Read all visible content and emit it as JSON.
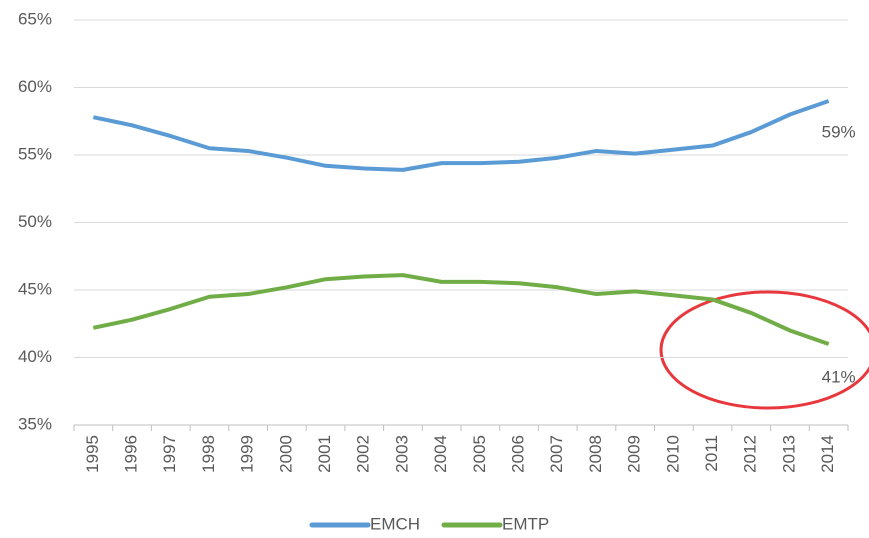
{
  "chart_data": {
    "type": "line",
    "categories": [
      "1995",
      "1996",
      "1997",
      "1998",
      "1999",
      "2000",
      "2001",
      "2002",
      "2003",
      "2004",
      "2005",
      "2006",
      "2007",
      "2008",
      "2009",
      "2010",
      "2011",
      "2012",
      "2013",
      "2014"
    ],
    "series": [
      {
        "name": "EMCH",
        "color": "#5b9bd5",
        "values": [
          57.8,
          57.2,
          56.4,
          55.5,
          55.3,
          54.8,
          54.2,
          54.0,
          53.9,
          54.4,
          54.4,
          54.5,
          54.8,
          55.3,
          55.1,
          55.4,
          55.7,
          56.7,
          58.0,
          59.0
        ],
        "value_labels": [
          null,
          null,
          null,
          null,
          null,
          null,
          null,
          null,
          null,
          null,
          null,
          null,
          null,
          null,
          null,
          null,
          null,
          null,
          null,
          "59%"
        ]
      },
      {
        "name": "EMTP",
        "color": "#70ad47",
        "values": [
          42.2,
          42.8,
          43.6,
          44.5,
          44.7,
          45.2,
          45.8,
          46.0,
          46.1,
          45.6,
          45.6,
          45.5,
          45.2,
          44.7,
          44.9,
          44.6,
          44.3,
          43.3,
          42.0,
          41.0
        ],
        "value_labels": [
          null,
          null,
          null,
          null,
          null,
          null,
          null,
          null,
          null,
          null,
          null,
          null,
          null,
          null,
          null,
          null,
          null,
          null,
          null,
          "41%"
        ]
      }
    ],
    "ylim": [
      35,
      65
    ],
    "yticks": [
      {
        "value": 35,
        "label": "35%"
      },
      {
        "value": 40,
        "label": "40%"
      },
      {
        "value": 45,
        "label": "45%"
      },
      {
        "value": 50,
        "label": "50%"
      },
      {
        "value": 55,
        "label": "55%"
      },
      {
        "value": 60,
        "label": "60%"
      },
      {
        "value": 65,
        "label": "65%"
      }
    ],
    "grid": true,
    "legend": "bottom"
  }
}
